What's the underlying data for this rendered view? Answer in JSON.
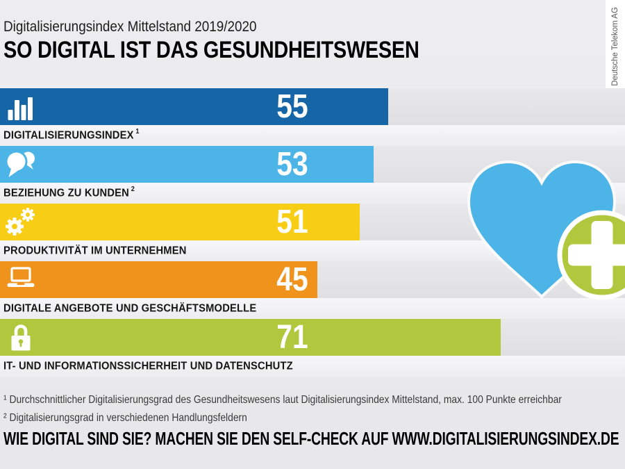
{
  "header": {
    "kicker": "Digitalisierungsindex Mittelstand 2019/2020",
    "title": "SO DIGITAL IST DAS GESUNDHEITSWESEN"
  },
  "watermark": {
    "copyright": "© Deutsche Telekom AG"
  },
  "chart_data": {
    "type": "bar",
    "orientation": "horizontal",
    "title": "SO DIGITAL IST DAS GESUNDHEITSWESEN",
    "subtitle": "Digitalisierungsindex Mittelstand 2019/2020",
    "xlim": [
      0,
      100
    ],
    "max_points": 100,
    "rows": [
      {
        "label": "DIGITALISIERUNGSINDEX",
        "sup": "1",
        "value": 55,
        "color": "#1565a7",
        "icon": "bar-chart"
      },
      {
        "label": "BEZIEHUNG ZU KUNDEN",
        "sup": "2",
        "value": 53,
        "color": "#4db4e7",
        "icon": "speech-bubbles"
      },
      {
        "label": "PRODUKTIVITÄT IM UNTERNEHMEN",
        "sup": "",
        "value": 51,
        "color": "#f7ce15",
        "icon": "gears"
      },
      {
        "label": "DIGITALE ANGEBOTE UND GESCHÄFTSMODELLE",
        "sup": "",
        "value": 45,
        "color": "#f0931d",
        "icon": "laptop"
      },
      {
        "label": "IT- UND INFORMATIONSSICHERHEIT UND DATENSCHUTZ",
        "sup": "",
        "value": 71,
        "color": "#b1c83e",
        "icon": "padlock"
      }
    ]
  },
  "illustration": {
    "name": "heart-with-medical-cross",
    "heart_color": "#4db4e7",
    "cross_circle_color": "#b1c83e"
  },
  "footnotes": [
    "¹ Durchschnittlicher Digitalisierungsgrad des Gesundheitswesens laut Digitalisierungsindex Mittelstand, max. 100 Punkte erreichbar",
    "² Digitalisierungsgrad in verschiedenen Handlungsfeldern"
  ],
  "cta": "WIE DIGITAL SIND SIE? MACHEN SIE DEN SELF-CHECK AUF WWW.DIGITALISIERUNGSINDEX.DE"
}
